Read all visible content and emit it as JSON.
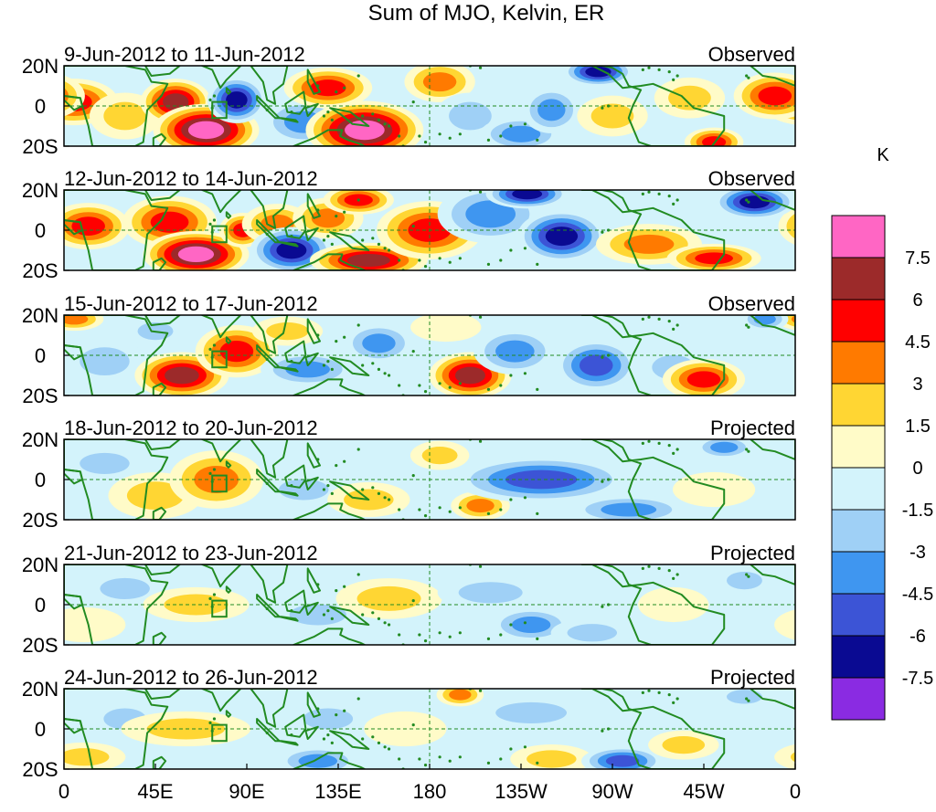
{
  "chart_data": {
    "type": "heatmap",
    "title": "Sum of MJO, Kelvin, ER",
    "x_ticks": [
      "0",
      "45E",
      "90E",
      "135E",
      "180",
      "135W",
      "90W",
      "45W",
      "0"
    ],
    "y_ticks": [
      "20N",
      "0",
      "20S"
    ],
    "xlim_degrees_east": [
      0,
      360
    ],
    "ylim_degrees_lat": [
      -20,
      20
    ],
    "colorbar": {
      "unit": "K",
      "levels": [
        "7.5",
        "6",
        "4.5",
        "3",
        "1.5",
        "0",
        "-1.5",
        "-3",
        "-4.5",
        "-6",
        "-7.5"
      ],
      "colors": [
        "#ff66c4",
        "#9c2a2a",
        "#ff0000",
        "#ff7a00",
        "#ffd633",
        "#fffbc8",
        "#d3f3fb",
        "#9fd0f6",
        "#3f96f0",
        "#3c54d6",
        "#0a0a92",
        "#8a2be2"
      ]
    },
    "land_color": "#228b22",
    "equator_line": "dashed",
    "dateline_line": "dashed",
    "panels": [
      {
        "date_range": "9-Jun-2012 to 11-Jun-2012",
        "status": "Observed",
        "features": [
          {
            "lon": 5,
            "lat": 2,
            "rx": 15,
            "ry": 8,
            "value": 5.5
          },
          {
            "lon": 30,
            "lat": -5,
            "rx": 12,
            "ry": 8,
            "value": 2.5
          },
          {
            "lon": 55,
            "lat": 2,
            "rx": 12,
            "ry": 8,
            "value": 6
          },
          {
            "lon": 70,
            "lat": -12,
            "rx": 18,
            "ry": 9,
            "value": 7.5
          },
          {
            "lon": 85,
            "lat": 3,
            "rx": 10,
            "ry": 8,
            "value": -6.5
          },
          {
            "lon": 118,
            "lat": -8,
            "rx": 14,
            "ry": 8,
            "value": -4
          },
          {
            "lon": 130,
            "lat": 9,
            "rx": 15,
            "ry": 7,
            "value": 5
          },
          {
            "lon": 148,
            "lat": -12,
            "rx": 20,
            "ry": 10,
            "value": 8
          },
          {
            "lon": 185,
            "lat": 12,
            "rx": 12,
            "ry": 7,
            "value": 3
          },
          {
            "lon": 200,
            "lat": -5,
            "rx": 12,
            "ry": 8,
            "value": -2
          },
          {
            "lon": 225,
            "lat": -14,
            "rx": 14,
            "ry": 6,
            "value": -3.5
          },
          {
            "lon": 240,
            "lat": -2,
            "rx": 10,
            "ry": 8,
            "value": -3.5
          },
          {
            "lon": 263,
            "lat": 17,
            "rx": 12,
            "ry": 5,
            "value": -6
          },
          {
            "lon": 270,
            "lat": -5,
            "rx": 12,
            "ry": 7,
            "value": 2.5
          },
          {
            "lon": 308,
            "lat": 4,
            "rx": 12,
            "ry": 7,
            "value": 2.5
          },
          {
            "lon": 320,
            "lat": -18,
            "rx": 10,
            "ry": 5,
            "value": 5
          },
          {
            "lon": 350,
            "lat": 5,
            "rx": 14,
            "ry": 8,
            "value": 5
          }
        ]
      },
      {
        "date_range": "12-Jun-2012 to 14-Jun-2012",
        "status": "Observed",
        "features": [
          {
            "lon": 12,
            "lat": 2,
            "rx": 14,
            "ry": 8,
            "value": 4.5
          },
          {
            "lon": 52,
            "lat": 4,
            "rx": 16,
            "ry": 9,
            "value": 5
          },
          {
            "lon": 65,
            "lat": -12,
            "rx": 18,
            "ry": 8,
            "value": 7.5
          },
          {
            "lon": 88,
            "lat": 0,
            "rx": 8,
            "ry": 6,
            "value": 5
          },
          {
            "lon": 105,
            "lat": 3,
            "rx": 12,
            "ry": 7,
            "value": 3.5
          },
          {
            "lon": 112,
            "lat": -10,
            "rx": 14,
            "ry": 8,
            "value": -6
          },
          {
            "lon": 130,
            "lat": 6,
            "rx": 12,
            "ry": 7,
            "value": 3
          },
          {
            "lon": 150,
            "lat": -15,
            "rx": 20,
            "ry": 6,
            "value": 6.5
          },
          {
            "lon": 145,
            "lat": 15,
            "rx": 12,
            "ry": 5,
            "value": 4.5
          },
          {
            "lon": 180,
            "lat": 0,
            "rx": 18,
            "ry": 10,
            "value": 5.5
          },
          {
            "lon": 210,
            "lat": 8,
            "rx": 18,
            "ry": 10,
            "value": -4
          },
          {
            "lon": 228,
            "lat": 18,
            "rx": 14,
            "ry": 5,
            "value": -6
          },
          {
            "lon": 245,
            "lat": -3,
            "rx": 15,
            "ry": 9,
            "value": -6.5
          },
          {
            "lon": 288,
            "lat": -7,
            "rx": 18,
            "ry": 7,
            "value": 4
          },
          {
            "lon": 320,
            "lat": -14,
            "rx": 16,
            "ry": 5,
            "value": 5
          },
          {
            "lon": 340,
            "lat": 14,
            "rx": 14,
            "ry": 6,
            "value": -6
          }
        ]
      },
      {
        "date_range": "15-Jun-2012 to 17-Jun-2012",
        "status": "Observed",
        "features": [
          {
            "lon": 5,
            "lat": 18,
            "rx": 10,
            "ry": 4,
            "value": 3
          },
          {
            "lon": 20,
            "lat": -3,
            "rx": 14,
            "ry": 8,
            "value": -1.5
          },
          {
            "lon": 45,
            "lat": 12,
            "rx": 10,
            "ry": 5,
            "value": -2
          },
          {
            "lon": 58,
            "lat": -10,
            "rx": 16,
            "ry": 8,
            "value": 6
          },
          {
            "lon": 85,
            "lat": 2,
            "rx": 14,
            "ry": 9,
            "value": 5.5
          },
          {
            "lon": 120,
            "lat": -7,
            "rx": 16,
            "ry": 6,
            "value": -4
          },
          {
            "lon": 110,
            "lat": 12,
            "rx": 12,
            "ry": 5,
            "value": 2
          },
          {
            "lon": 155,
            "lat": 6,
            "rx": 12,
            "ry": 7,
            "value": -3
          },
          {
            "lon": 200,
            "lat": -10,
            "rx": 14,
            "ry": 8,
            "value": 6
          },
          {
            "lon": 188,
            "lat": 14,
            "rx": 12,
            "ry": 5,
            "value": 1
          },
          {
            "lon": 222,
            "lat": 2,
            "rx": 14,
            "ry": 8,
            "value": -3
          },
          {
            "lon": 262,
            "lat": -5,
            "rx": 14,
            "ry": 9,
            "value": -4.5
          },
          {
            "lon": 300,
            "lat": -6,
            "rx": 12,
            "ry": 7,
            "value": -2.5
          },
          {
            "lon": 315,
            "lat": -12,
            "rx": 14,
            "ry": 7,
            "value": 5
          },
          {
            "lon": 345,
            "lat": 18,
            "rx": 8,
            "ry": 4,
            "value": -3
          }
        ]
      },
      {
        "date_range": "18-Jun-2012 to 20-Jun-2012",
        "status": "Projected",
        "features": [
          {
            "lon": 20,
            "lat": 8,
            "rx": 14,
            "ry": 6,
            "value": -1.5
          },
          {
            "lon": 45,
            "lat": -8,
            "rx": 16,
            "ry": 8,
            "value": 2
          },
          {
            "lon": 75,
            "lat": 0,
            "rx": 16,
            "ry": 10,
            "value": 4
          },
          {
            "lon": 118,
            "lat": -5,
            "rx": 14,
            "ry": 6,
            "value": -2
          },
          {
            "lon": 150,
            "lat": -10,
            "rx": 14,
            "ry": 6,
            "value": 2
          },
          {
            "lon": 185,
            "lat": 12,
            "rx": 10,
            "ry": 5,
            "value": 1.5
          },
          {
            "lon": 205,
            "lat": -13,
            "rx": 10,
            "ry": 5,
            "value": 3
          },
          {
            "lon": 235,
            "lat": 0,
            "rx": 30,
            "ry": 8,
            "value": -4.5
          },
          {
            "lon": 278,
            "lat": -15,
            "rx": 20,
            "ry": 5,
            "value": -3
          },
          {
            "lon": 325,
            "lat": 16,
            "rx": 10,
            "ry": 4,
            "value": -3.5
          },
          {
            "lon": 320,
            "lat": -5,
            "rx": 14,
            "ry": 6,
            "value": 1
          }
        ]
      },
      {
        "date_range": "21-Jun-2012 to 23-Jun-2012",
        "status": "Projected",
        "features": [
          {
            "lon": 10,
            "lat": -10,
            "rx": 14,
            "ry": 6,
            "value": 1
          },
          {
            "lon": 30,
            "lat": 8,
            "rx": 14,
            "ry": 6,
            "value": -1.5
          },
          {
            "lon": 65,
            "lat": 0,
            "rx": 18,
            "ry": 6,
            "value": 2
          },
          {
            "lon": 125,
            "lat": -5,
            "rx": 16,
            "ry": 6,
            "value": -2.5
          },
          {
            "lon": 160,
            "lat": 3,
            "rx": 18,
            "ry": 7,
            "value": 2
          },
          {
            "lon": 210,
            "lat": 6,
            "rx": 18,
            "ry": 6,
            "value": -2
          },
          {
            "lon": 230,
            "lat": -10,
            "rx": 14,
            "ry": 6,
            "value": -3
          },
          {
            "lon": 260,
            "lat": -14,
            "rx": 14,
            "ry": 5,
            "value": -2.5
          },
          {
            "lon": 300,
            "lat": 0,
            "rx": 12,
            "ry": 6,
            "value": 1
          },
          {
            "lon": 335,
            "lat": 12,
            "rx": 10,
            "ry": 5,
            "value": -2
          }
        ]
      },
      {
        "date_range": "24-Jun-2012 to 26-Jun-2012",
        "status": "Projected",
        "features": [
          {
            "lon": 10,
            "lat": -14,
            "rx": 14,
            "ry": 5,
            "value": 2
          },
          {
            "lon": 30,
            "lat": 5,
            "rx": 12,
            "ry": 6,
            "value": -1.5
          },
          {
            "lon": 60,
            "lat": 0,
            "rx": 22,
            "ry": 6,
            "value": 1.5
          },
          {
            "lon": 125,
            "lat": -16,
            "rx": 14,
            "ry": 5,
            "value": -3
          },
          {
            "lon": 130,
            "lat": 5,
            "rx": 14,
            "ry": 6,
            "value": -1.5
          },
          {
            "lon": 168,
            "lat": 0,
            "rx": 14,
            "ry": 6,
            "value": 1
          },
          {
            "lon": 195,
            "lat": 17,
            "rx": 8,
            "ry": 4,
            "value": 4
          },
          {
            "lon": 230,
            "lat": 8,
            "rx": 20,
            "ry": 6,
            "value": -2
          },
          {
            "lon": 240,
            "lat": -15,
            "rx": 14,
            "ry": 5,
            "value": 2
          },
          {
            "lon": 275,
            "lat": -16,
            "rx": 14,
            "ry": 5,
            "value": -5
          },
          {
            "lon": 305,
            "lat": -8,
            "rx": 12,
            "ry": 5,
            "value": 2.5
          },
          {
            "lon": 335,
            "lat": 16,
            "rx": 10,
            "ry": 4,
            "value": -2
          }
        ]
      }
    ]
  }
}
